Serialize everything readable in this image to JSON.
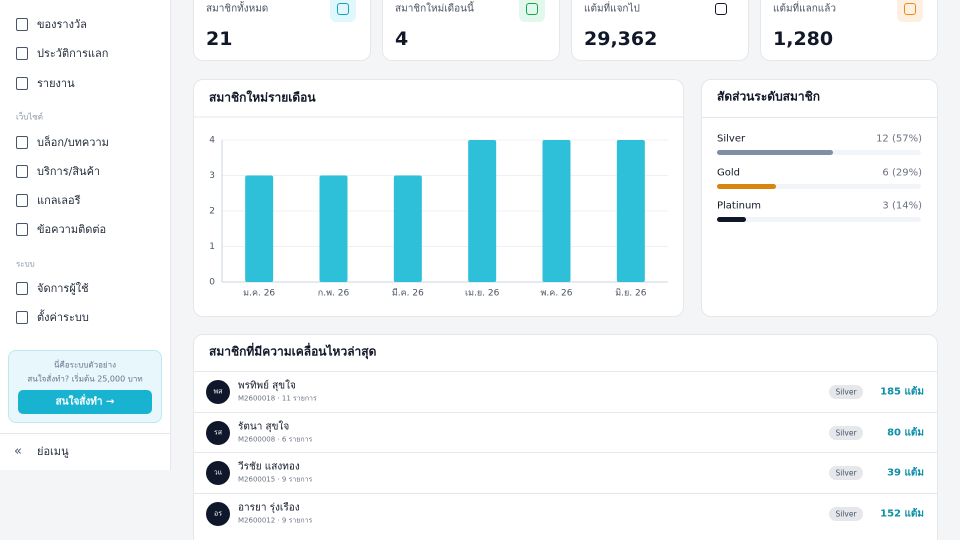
{
  "sidebar": {
    "groups": [
      {
        "items": [
          "ของรางวัล",
          "ประวัติการแลก",
          "รายงาน"
        ]
      },
      {
        "title": "เว็บไซต์",
        "items": [
          "บล็อก/บทความ",
          "บริการ/สินค้า",
          "แกลเลอรี",
          "ข้อความติดต่อ"
        ]
      },
      {
        "title": "ระบบ",
        "items": [
          "จัดการผู้ใช้",
          "ตั้งค่าระบบ"
        ]
      }
    ],
    "promo": {
      "title": "นี่คือระบบตัวอย่าง",
      "text": "สนใจสั่งทำ? เริ่มต้น 25,000 บาท",
      "button": "สนใจสั่งทำ →"
    },
    "collapse": "ย่อเมนู"
  },
  "stats": [
    {
      "label": "สมาชิกทั้งหมด",
      "value": "21"
    },
    {
      "label": "สมาชิกใหม่เดือนนี้",
      "value": "4"
    },
    {
      "label": "แต้มที่แจกไป",
      "value": "29,362"
    },
    {
      "label": "แต้มที่แลกแล้ว",
      "value": "1,280"
    }
  ],
  "chart_data": {
    "type": "bar",
    "title": "สมาชิกใหม่รายเดือน",
    "categories": [
      "ม.ค. 26",
      "ก.พ. 26",
      "มี.ค. 26",
      "เม.ย. 26",
      "พ.ค. 26",
      "มิ.ย. 26"
    ],
    "values": [
      3,
      3,
      3,
      4,
      4,
      4
    ],
    "color": "#2ec0d9",
    "ylim": [
      0,
      4
    ],
    "yticks": [
      0,
      1,
      2,
      3,
      4
    ],
    "grid": true
  },
  "tiers": {
    "title": "สัดส่วนระดับสมาชิก",
    "items": [
      {
        "name": "Silver",
        "value": 57,
        "value_label": "12 (57%)",
        "color": "#7f8ea3"
      },
      {
        "name": "Gold",
        "value": 29,
        "value_label": "6 (29%)",
        "color": "#d4860f"
      },
      {
        "name": "Platinum",
        "value": 14,
        "value_label": "3 (14%)",
        "color": "#0f172a"
      }
    ]
  },
  "activity": {
    "title": "สมาชิกที่มีความเคลื่อนไหวล่าสุด",
    "rows": [
      {
        "initials": "พส",
        "name": "พรทิพย์ สุขใจ",
        "sub": "M2600018 · 11 รายการ",
        "tier": "Silver",
        "points": "185 แต้ม"
      },
      {
        "initials": "รส",
        "name": "รัตนา สุขใจ",
        "sub": "M2600008 · 6 รายการ",
        "tier": "Silver",
        "points": "80 แต้ม"
      },
      {
        "initials": "วแ",
        "name": "วีรชัย แสงทอง",
        "sub": "M2600015 · 9 รายการ",
        "tier": "Silver",
        "points": "39 แต้ม"
      },
      {
        "initials": "อร",
        "name": "อารยา รุ่งเรือง",
        "sub": "M2600012 · 9 รายการ",
        "tier": "Silver",
        "points": "152 แต้ม"
      }
    ]
  }
}
